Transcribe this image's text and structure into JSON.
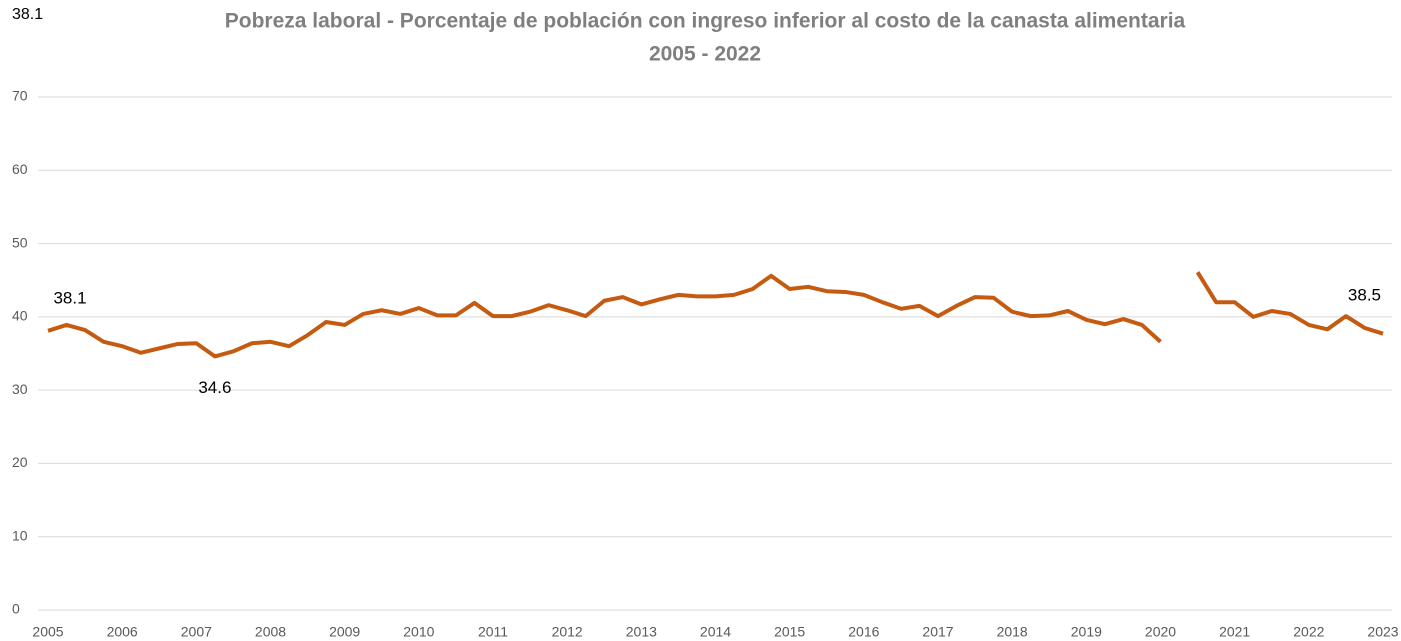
{
  "chart_data": {
    "type": "line",
    "title": "Pobreza laboral - Porcentaje de población con ingreso inferior al costo de la canasta alimentaria",
    "subtitle": "2005 - 2022",
    "annotation": "38.1",
    "x": [
      2005,
      2005.25,
      2005.5,
      2005.75,
      2006,
      2006.25,
      2006.5,
      2006.75,
      2007,
      2007.25,
      2007.5,
      2007.75,
      2008,
      2008.25,
      2008.5,
      2008.75,
      2009,
      2009.25,
      2009.5,
      2009.75,
      2010,
      2010.25,
      2010.5,
      2010.75,
      2011,
      2011.25,
      2011.5,
      2011.75,
      2012,
      2012.25,
      2012.5,
      2012.75,
      2013,
      2013.25,
      2013.5,
      2013.75,
      2014,
      2014.25,
      2014.5,
      2014.75,
      2015,
      2015.25,
      2015.5,
      2015.75,
      2016,
      2016.25,
      2016.5,
      2016.75,
      2017,
      2017.25,
      2017.5,
      2017.75,
      2018,
      2018.25,
      2018.5,
      2018.75,
      2019,
      2019.25,
      2019.5,
      2019.75,
      2020,
      2020.25,
      2020.5,
      2020.75,
      2021,
      2021.25,
      2021.5,
      2021.75,
      2022,
      2022.25,
      2022.5,
      2022.75,
      2023
    ],
    "series": [
      {
        "name": "Pobreza laboral",
        "color": "#c55a11",
        "values": [
          38.1,
          38.9,
          38.2,
          36.6,
          36.0,
          35.1,
          35.7,
          36.3,
          36.4,
          34.6,
          35.3,
          36.4,
          36.6,
          36.0,
          37.5,
          39.3,
          38.9,
          40.4,
          40.9,
          40.4,
          41.2,
          40.2,
          40.2,
          41.9,
          40.1,
          40.1,
          40.7,
          41.6,
          40.9,
          40.1,
          42.2,
          42.7,
          41.7,
          42.4,
          43.0,
          42.8,
          42.8,
          43.0,
          43.8,
          45.6,
          43.8,
          44.1,
          43.5,
          43.4,
          43.0,
          42.0,
          41.1,
          41.5,
          40.1,
          41.5,
          42.7,
          42.6,
          40.7,
          40.1,
          40.2,
          40.8,
          39.6,
          39.0,
          39.7,
          38.9,
          36.6,
          null,
          46.1,
          42.0,
          42.0,
          40.0,
          40.8,
          40.4,
          38.9,
          38.3,
          40.1,
          38.5,
          37.7
        ],
        "value_labels": [
          "38.1",
          null,
          null,
          null,
          null,
          null,
          null,
          null,
          null,
          "34.6",
          null,
          null,
          null,
          null,
          null,
          null,
          null,
          null,
          null,
          null,
          null,
          null,
          null,
          null,
          null,
          null,
          null,
          null,
          null,
          null,
          null,
          null,
          null,
          null,
          null,
          null,
          null,
          null,
          null,
          null,
          null,
          null,
          null,
          null,
          null,
          null,
          null,
          null,
          null,
          null,
          null,
          null,
          null,
          null,
          null,
          null,
          null,
          null,
          null,
          null,
          null,
          null,
          null,
          null,
          null,
          null,
          null,
          null,
          null,
          null,
          null,
          "38.5",
          null
        ]
      }
    ],
    "xlim": [
      2005,
      2023
    ],
    "xticks": [
      2005,
      2006,
      2007,
      2008,
      2009,
      2010,
      2011,
      2012,
      2013,
      2014,
      2015,
      2016,
      2017,
      2018,
      2019,
      2020,
      2021,
      2022,
      2023
    ],
    "ylim": [
      0,
      70
    ],
    "yticks": [
      0,
      10,
      20,
      30,
      40,
      50,
      60,
      70
    ],
    "grid": true
  }
}
